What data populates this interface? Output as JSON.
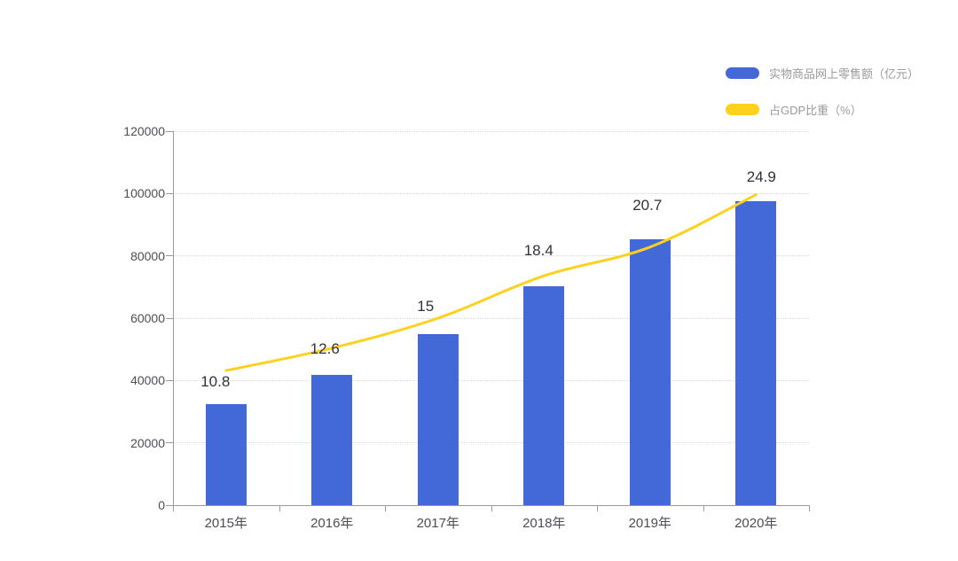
{
  "chart_data": {
    "type": "bar+line",
    "title": "",
    "categories": [
      "2015年",
      "2016年",
      "2017年",
      "2018年",
      "2019年",
      "2020年"
    ],
    "series": [
      {
        "name": "实物商品网上零售额（亿元）",
        "type": "bar",
        "color": "#4368d8",
        "axis": "left",
        "values": [
          32400,
          41900,
          54800,
          70200,
          85200,
          97600
        ]
      },
      {
        "name": "占GDP比重（%）",
        "type": "line",
        "color": "#fdd11e",
        "axis": "right",
        "smooth": true,
        "values": [
          10.8,
          12.6,
          15,
          18.4,
          20.7,
          24.9
        ],
        "point_labels": [
          "10.8",
          "12.6",
          "15",
          "18.4",
          "20.7",
          "24.9"
        ]
      }
    ],
    "y_axis_left": {
      "min": 0,
      "max": 120000,
      "step": 20000,
      "tick_labels": [
        "0",
        "20000",
        "40000",
        "60000",
        "80000",
        "100000",
        "120000"
      ]
    },
    "y_axis_right": {
      "visible": false,
      "min": 0,
      "max": 30
    },
    "grid": "horizontal-dotted",
    "legend": {
      "position": "top-right",
      "items": [
        {
          "label": "实物商品网上零售额（亿元）",
          "color": "#4368d8",
          "marker": "pill"
        },
        {
          "label": "占GDP比重（%）",
          "color": "#fdd11e",
          "marker": "pill"
        }
      ]
    }
  },
  "colors": {
    "background": "#ffffff",
    "bar": "#4368d8",
    "line": "#fdd11e",
    "grid": "#d8d8d8",
    "axis": "#9a9a9a",
    "axis_text": "#4d4d56",
    "point_label_text": "#31313b",
    "legend_text": "#9a9a9a"
  }
}
